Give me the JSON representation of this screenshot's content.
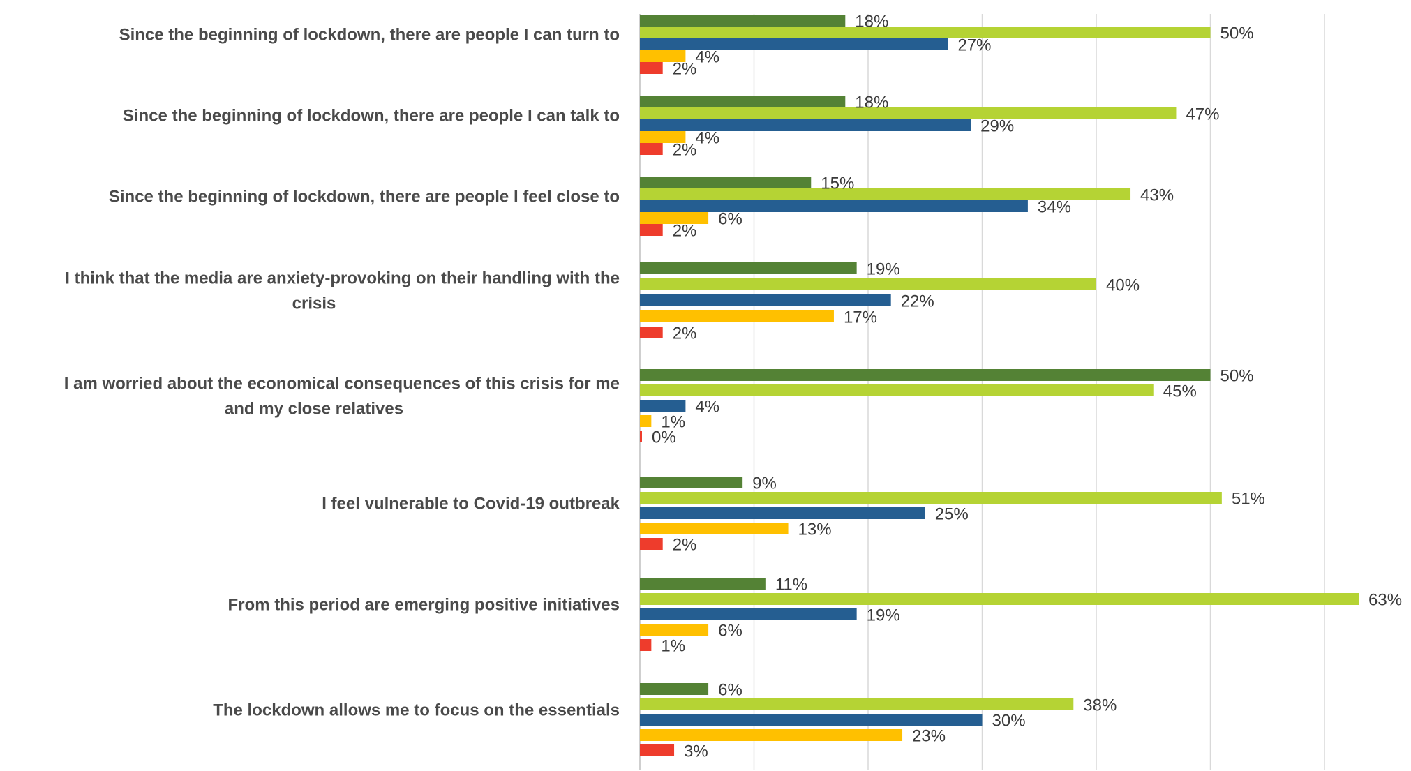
{
  "chart_data": {
    "type": "bar",
    "orientation": "horizontal",
    "categories": [
      [
        "Since the beginning of lockdown, there are people I can turn to"
      ],
      [
        "Since the beginning of lockdown, there are people I can talk to"
      ],
      [
        "Since the beginning of lockdown, there are people I feel close to"
      ],
      [
        "I think that the media are anxiety-provoking on their handling with the",
        "crisis"
      ],
      [
        "I am worried about the economical consequences of this crisis for me",
        "and my close relatives"
      ],
      [
        "I feel vulnerable to Covid-19 outbreak"
      ],
      [
        "From this period are emerging positive initiatives"
      ],
      [
        "The lockdown allows me to focus on the essentials"
      ]
    ],
    "series": [
      {
        "color": "#548235",
        "values": [
          18,
          18,
          15,
          19,
          50,
          9,
          11,
          6
        ],
        "labels": [
          "18%",
          "18%",
          "15%",
          "19%",
          "50%",
          "9%",
          "11%",
          "6%"
        ]
      },
      {
        "color": "#b5d334",
        "values": [
          50,
          47,
          43,
          40,
          45,
          51,
          63,
          38
        ],
        "labels": [
          "50%",
          "47%",
          "43%",
          "40%",
          "45%",
          "51%",
          "63%",
          "38%"
        ]
      },
      {
        "color": "#255e91",
        "values": [
          27,
          29,
          34,
          22,
          4,
          25,
          19,
          30
        ],
        "labels": [
          "27%",
          "29%",
          "34%",
          "22%",
          "4%",
          "25%",
          "19%",
          "30%"
        ]
      },
      {
        "color": "#ffc000",
        "values": [
          4,
          4,
          6,
          17,
          1,
          13,
          6,
          23
        ],
        "labels": [
          "4%",
          "4%",
          "6%",
          "17%",
          "1%",
          "13%",
          "6%",
          "23%"
        ]
      },
      {
        "color": "#ee3c2c",
        "values": [
          2,
          2,
          2,
          2,
          0,
          2,
          1,
          3
        ],
        "labels": [
          "2%",
          "2%",
          "2%",
          "2%",
          "0%",
          "2%",
          "1%",
          "3%"
        ]
      }
    ],
    "xlim": [
      0,
      65
    ],
    "grid": true,
    "legend": "none",
    "title": "",
    "xlabel": "",
    "ylabel": ""
  }
}
